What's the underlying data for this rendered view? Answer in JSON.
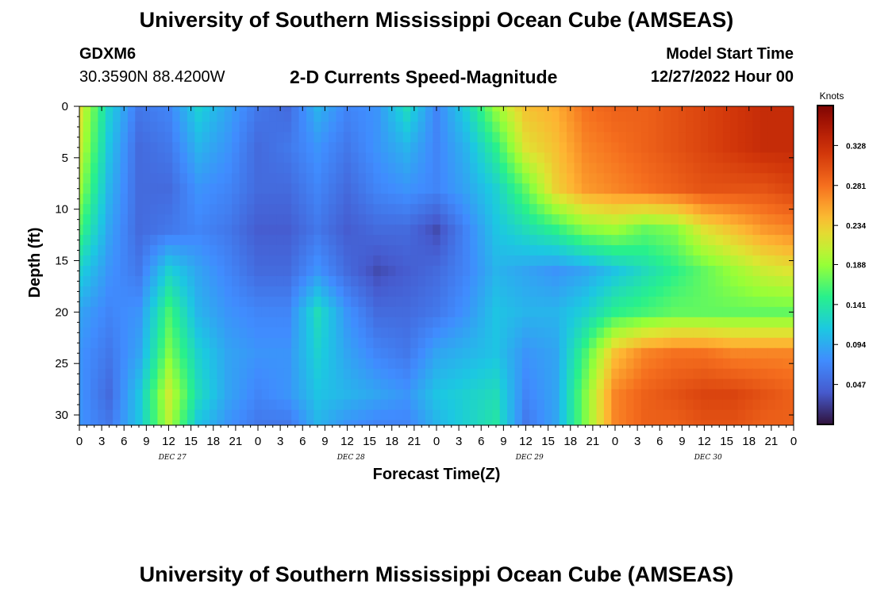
{
  "header": {
    "title": "University of Southern Mississippi Ocean Cube (AMSEAS)",
    "station_id": "GDXM6",
    "station_coords": "30.3590N  88.4200W",
    "plot_title": "2-D Currents Speed-Magnitude",
    "model_start_label": "Model Start Time",
    "model_start_value": "12/27/2022 Hour 00"
  },
  "footer": {
    "title_repeat": "University of Southern Mississippi Ocean Cube (AMSEAS)"
  },
  "colorbar": {
    "unit": "Knots",
    "ticks": [
      "0.328",
      "0.281",
      "0.234",
      "0.188",
      "0.141",
      "0.094",
      "0.047"
    ],
    "min": 0.0,
    "max": 0.375
  },
  "chart_data": {
    "type": "heatmap",
    "title": "2-D Currents Speed-Magnitude",
    "xlabel": "Forecast Time(Z)",
    "ylabel": "Depth (ft)",
    "x_tick_labels": [
      "0",
      "3",
      "6",
      "9",
      "12",
      "15",
      "18",
      "21",
      "0",
      "3",
      "6",
      "9",
      "12",
      "15",
      "18",
      "21",
      "0",
      "3",
      "6",
      "9",
      "12",
      "15",
      "18",
      "21",
      "0",
      "3",
      "6",
      "9",
      "12",
      "15",
      "18",
      "21",
      "0"
    ],
    "x_day_labels": [
      "DEC 27",
      "DEC 28",
      "DEC 29",
      "DEC 30"
    ],
    "xlim_hours": [
      0,
      96
    ],
    "y_tick_labels": [
      "0",
      "5",
      "10",
      "15",
      "20",
      "25",
      "30"
    ],
    "ylim_ft": [
      0,
      31
    ],
    "value_unit": "Knots",
    "depths_ft": [
      0,
      4,
      8,
      12,
      16,
      20,
      24,
      28,
      31
    ],
    "times_hours": [
      0,
      4,
      8,
      12,
      16,
      20,
      24,
      28,
      32,
      36,
      40,
      44,
      48,
      52,
      56,
      60,
      64,
      68,
      72,
      76,
      80,
      84,
      88,
      92,
      96
    ],
    "speed_knots": [
      [
        0.22,
        0.12,
        0.06,
        0.07,
        0.12,
        0.09,
        0.06,
        0.05,
        0.1,
        0.07,
        0.08,
        0.13,
        0.07,
        0.12,
        0.19,
        0.24,
        0.25,
        0.28,
        0.29,
        0.29,
        0.3,
        0.31,
        0.32,
        0.33,
        0.33
      ],
      [
        0.21,
        0.11,
        0.05,
        0.06,
        0.1,
        0.08,
        0.05,
        0.06,
        0.08,
        0.06,
        0.08,
        0.1,
        0.07,
        0.1,
        0.15,
        0.22,
        0.24,
        0.27,
        0.28,
        0.29,
        0.3,
        0.31,
        0.32,
        0.33,
        0.33
      ],
      [
        0.19,
        0.1,
        0.05,
        0.05,
        0.08,
        0.07,
        0.05,
        0.05,
        0.07,
        0.05,
        0.07,
        0.08,
        0.07,
        0.09,
        0.12,
        0.17,
        0.23,
        0.26,
        0.27,
        0.28,
        0.29,
        0.3,
        0.3,
        0.3,
        0.31
      ],
      [
        0.16,
        0.09,
        0.05,
        0.06,
        0.07,
        0.06,
        0.04,
        0.04,
        0.06,
        0.04,
        0.05,
        0.05,
        0.03,
        0.07,
        0.11,
        0.13,
        0.15,
        0.18,
        0.19,
        0.17,
        0.18,
        0.22,
        0.24,
        0.26,
        0.27
      ],
      [
        0.12,
        0.08,
        0.06,
        0.12,
        0.09,
        0.07,
        0.05,
        0.05,
        0.08,
        0.05,
        0.03,
        0.04,
        0.05,
        0.07,
        0.1,
        0.09,
        0.08,
        0.09,
        0.11,
        0.13,
        0.15,
        0.17,
        0.19,
        0.21,
        0.22
      ],
      [
        0.09,
        0.07,
        0.08,
        0.16,
        0.1,
        0.08,
        0.07,
        0.07,
        0.13,
        0.08,
        0.05,
        0.05,
        0.06,
        0.08,
        0.11,
        0.1,
        0.1,
        0.12,
        0.15,
        0.16,
        0.17,
        0.17,
        0.17,
        0.17,
        0.17
      ],
      [
        0.08,
        0.06,
        0.09,
        0.18,
        0.12,
        0.09,
        0.08,
        0.08,
        0.12,
        0.09,
        0.07,
        0.06,
        0.09,
        0.1,
        0.11,
        0.08,
        0.09,
        0.16,
        0.24,
        0.27,
        0.28,
        0.28,
        0.27,
        0.27,
        0.27
      ],
      [
        0.08,
        0.05,
        0.11,
        0.21,
        0.13,
        0.09,
        0.07,
        0.08,
        0.11,
        0.1,
        0.09,
        0.08,
        0.11,
        0.12,
        0.13,
        0.07,
        0.09,
        0.18,
        0.27,
        0.29,
        0.3,
        0.31,
        0.31,
        0.3,
        0.29
      ],
      [
        0.08,
        0.06,
        0.11,
        0.2,
        0.11,
        0.08,
        0.06,
        0.06,
        0.1,
        0.08,
        0.07,
        0.07,
        0.1,
        0.12,
        0.14,
        0.06,
        0.09,
        0.18,
        0.27,
        0.29,
        0.29,
        0.3,
        0.3,
        0.29,
        0.29
      ]
    ]
  }
}
